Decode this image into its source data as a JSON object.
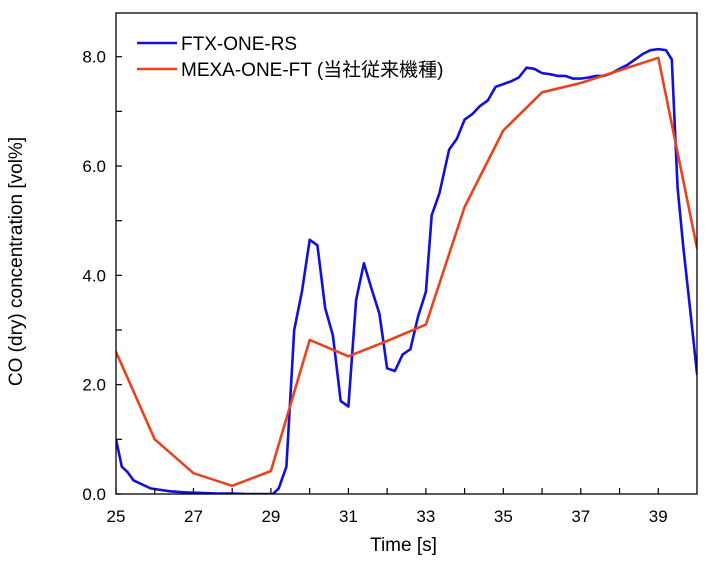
{
  "chart_data": {
    "type": "line",
    "xlabel": "Time [s]",
    "ylabel": "CO (dry) concentration [vol%]",
    "xlim": [
      25,
      40
    ],
    "ylim": [
      0,
      8.8
    ],
    "xticks": [
      25,
      27,
      29,
      31,
      33,
      35,
      37,
      39
    ],
    "xtick_labels": [
      "25",
      "27",
      "29",
      "31",
      "33",
      "35",
      "37",
      "39"
    ],
    "yticks": [
      0,
      2,
      4,
      6,
      8
    ],
    "ytick_labels": [
      "0.0",
      "2.0",
      "4.0",
      "6.0",
      "8.0"
    ],
    "grid": false,
    "legend_position": "top-left",
    "series": [
      {
        "name": "FTX-ONE-RS",
        "color": "#1010d8",
        "x": [
          25,
          25.15,
          25.3,
          25.45,
          25.6,
          25.75,
          25.9,
          26.1,
          26.4,
          26.8,
          27.2,
          27.6,
          28,
          28.4,
          28.8,
          29.05,
          29.2,
          29.4,
          29.6,
          29.8,
          30.0,
          30.2,
          30.4,
          30.6,
          30.8,
          31.0,
          31.2,
          31.4,
          31.6,
          31.8,
          32.0,
          32.2,
          32.4,
          32.6,
          32.8,
          33.0,
          33.15,
          33.35,
          33.6,
          33.8,
          34.0,
          34.2,
          34.4,
          34.6,
          34.8,
          35.0,
          35.2,
          35.4,
          35.6,
          35.8,
          36.0,
          36.2,
          36.4,
          36.6,
          36.8,
          37.0,
          37.2,
          37.4,
          37.6,
          37.8,
          38.0,
          38.2,
          38.4,
          38.6,
          38.8,
          39.0,
          39.2,
          39.35,
          39.5,
          39.65,
          39.85,
          40.0
        ],
        "values": [
          1.0,
          0.5,
          0.4,
          0.25,
          0.2,
          0.15,
          0.1,
          0.08,
          0.05,
          0.03,
          0.02,
          0.01,
          0.01,
          0.0,
          0.0,
          0.0,
          0.1,
          0.5,
          3.0,
          3.7,
          4.65,
          4.55,
          3.4,
          2.9,
          1.7,
          1.6,
          3.55,
          4.22,
          3.75,
          3.3,
          2.3,
          2.25,
          2.55,
          2.65,
          3.25,
          3.7,
          5.1,
          5.5,
          6.3,
          6.5,
          6.85,
          6.95,
          7.1,
          7.2,
          7.45,
          7.5,
          7.55,
          7.62,
          7.8,
          7.78,
          7.7,
          7.68,
          7.65,
          7.65,
          7.6,
          7.6,
          7.62,
          7.65,
          7.65,
          7.7,
          7.78,
          7.85,
          7.95,
          8.05,
          8.12,
          8.14,
          8.12,
          7.95,
          5.6,
          4.5,
          3.2,
          2.2
        ]
      },
      {
        "name": "MEXA-ONE-FT (当社従来機種)",
        "color": "#e8431c",
        "x": [
          25,
          26,
          27,
          28,
          29,
          30,
          31,
          32,
          33,
          34,
          35,
          36,
          37,
          38,
          39,
          40
        ],
        "values": [
          2.6,
          1.0,
          0.38,
          0.15,
          0.42,
          2.82,
          2.52,
          2.8,
          3.1,
          5.25,
          6.65,
          7.35,
          7.52,
          7.75,
          7.98,
          4.5
        ]
      }
    ]
  }
}
